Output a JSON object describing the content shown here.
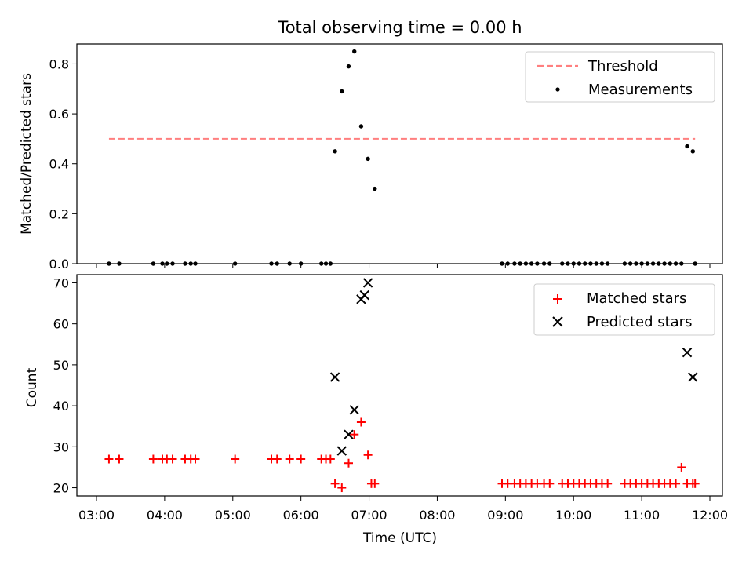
{
  "chart_data": [
    {
      "type": "scatter",
      "title": "Total observing time = 0.00 h",
      "xlabel": "",
      "ylabel": "Matched/Predicted stars",
      "xlim": [
        "03:00",
        "12:00"
      ],
      "ylim": [
        0,
        0.88
      ],
      "yticks": [
        "0.0",
        "0.2",
        "0.4",
        "0.6",
        "0.8"
      ],
      "legend": {
        "position": "top-right",
        "entries": [
          "Threshold",
          "Measurements"
        ]
      },
      "series": [
        {
          "name": "Threshold",
          "style": "dashed-line",
          "color": "#ff7f7f",
          "x": [
            "03:11",
            "11:47"
          ],
          "y": [
            0.5,
            0.5
          ]
        },
        {
          "name": "Measurements",
          "style": "dot",
          "color": "#000000",
          "x": [
            "03:11",
            "03:20",
            "03:50",
            "03:58",
            "04:02",
            "04:07",
            "04:18",
            "04:23",
            "04:27",
            "05:02",
            "05:34",
            "05:39",
            "05:50",
            "06:00",
            "06:18",
            "06:22",
            "06:26",
            "06:30",
            "06:36",
            "06:42",
            "06:47",
            "06:53",
            "06:59",
            "07:05",
            "08:57",
            "09:02",
            "09:08",
            "09:13",
            "09:18",
            "09:23",
            "09:28",
            "09:34",
            "09:39",
            "09:50",
            "09:55",
            "10:00",
            "10:05",
            "10:10",
            "10:15",
            "10:20",
            "10:25",
            "10:30",
            "10:45",
            "10:50",
            "10:55",
            "11:00",
            "11:05",
            "11:10",
            "11:15",
            "11:20",
            "11:25",
            "11:30",
            "11:35",
            "11:40",
            "11:45",
            "11:47"
          ],
          "y": [
            0,
            0,
            0,
            0,
            0,
            0,
            0,
            0,
            0,
            0,
            0,
            0,
            0,
            0,
            0,
            0,
            0,
            0.45,
            0.69,
            0.79,
            0.85,
            0.55,
            0.42,
            0.3,
            0,
            0,
            0,
            0,
            0,
            0,
            0,
            0,
            0,
            0,
            0,
            0,
            0,
            0,
            0,
            0,
            0,
            0,
            0,
            0,
            0,
            0,
            0,
            0,
            0,
            0,
            0,
            0,
            0,
            0.47,
            0.45,
            0
          ]
        }
      ]
    },
    {
      "type": "scatter",
      "title": "",
      "xlabel": "Time (UTC)",
      "ylabel": "Count",
      "xlim": [
        "03:00",
        "12:00"
      ],
      "ylim": [
        18,
        72
      ],
      "yticks": [
        "20",
        "30",
        "40",
        "50",
        "60",
        "70"
      ],
      "xticks": [
        "03:00",
        "04:00",
        "05:00",
        "06:00",
        "07:00",
        "08:00",
        "09:00",
        "10:00",
        "11:00",
        "12:00"
      ],
      "legend": {
        "position": "top-right",
        "entries": [
          "Matched stars",
          "Predicted stars"
        ]
      },
      "series": [
        {
          "name": "Matched stars",
          "style": "plus",
          "color": "#ff0000",
          "x": [
            "03:11",
            "03:20",
            "03:50",
            "03:58",
            "04:02",
            "04:07",
            "04:18",
            "04:23",
            "04:27",
            "05:02",
            "05:34",
            "05:39",
            "05:50",
            "06:00",
            "06:18",
            "06:22",
            "06:26",
            "06:30",
            "06:36",
            "06:42",
            "06:47",
            "06:53",
            "06:59",
            "07:02",
            "07:05",
            "08:57",
            "09:02",
            "09:08",
            "09:13",
            "09:18",
            "09:23",
            "09:28",
            "09:34",
            "09:39",
            "09:50",
            "09:55",
            "10:00",
            "10:05",
            "10:10",
            "10:15",
            "10:20",
            "10:25",
            "10:30",
            "10:45",
            "10:50",
            "10:55",
            "11:00",
            "11:05",
            "11:10",
            "11:15",
            "11:20",
            "11:25",
            "11:30",
            "11:35",
            "11:40",
            "11:45",
            "11:47"
          ],
          "y": [
            27,
            27,
            27,
            27,
            27,
            27,
            27,
            27,
            27,
            27,
            27,
            27,
            27,
            27,
            27,
            27,
            27,
            21,
            20,
            26,
            33,
            36,
            28,
            21,
            21,
            21,
            21,
            21,
            21,
            21,
            21,
            21,
            21,
            21,
            21,
            21,
            21,
            21,
            21,
            21,
            21,
            21,
            21,
            21,
            21,
            21,
            21,
            21,
            21,
            21,
            21,
            21,
            21,
            25,
            21,
            21,
            21
          ]
        },
        {
          "name": "Predicted stars",
          "style": "x",
          "color": "#000000",
          "x": [
            "06:30",
            "06:36",
            "06:42",
            "06:47",
            "06:53",
            "06:56",
            "06:59",
            "11:40",
            "11:45"
          ],
          "y": [
            47,
            29,
            33,
            39,
            66,
            67,
            70,
            53,
            47
          ]
        }
      ]
    }
  ]
}
